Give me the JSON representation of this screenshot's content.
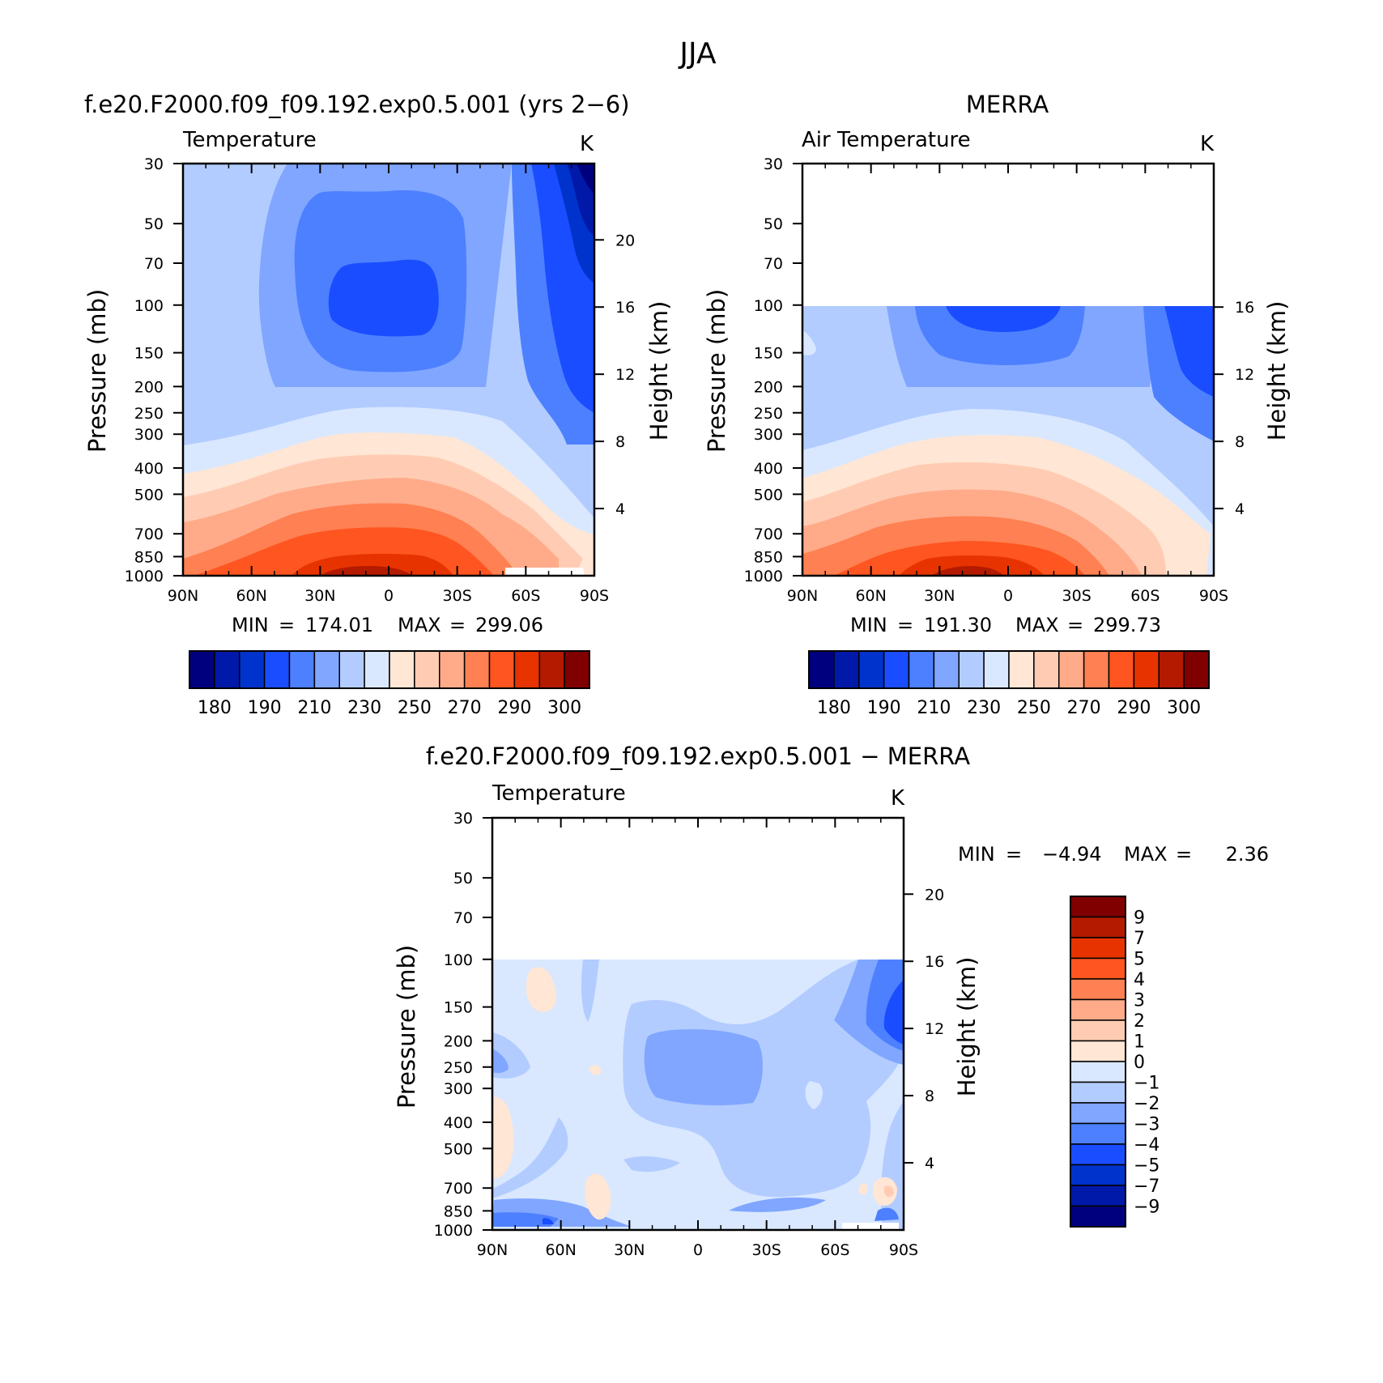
{
  "figure_title": "JJA",
  "chart_data": [
    {
      "id": "model",
      "type": "contour",
      "title": "f.e20.F2000.f09_f09.192.exp0.5.001 (yrs 2−6)",
      "left_label": "Temperature",
      "units_label": "K",
      "xlabel": "",
      "ylabel": "Pressure (mb)",
      "ylabel_right": "Height (km)",
      "x_ticks": [
        "90N",
        "60N",
        "30N",
        "0",
        "30S",
        "60S",
        "90S"
      ],
      "y_ticks": [
        30,
        50,
        70,
        100,
        150,
        200,
        250,
        300,
        400,
        500,
        700,
        850,
        1000
      ],
      "y_scale": "log",
      "ylim": [
        1000,
        30
      ],
      "height_ticks": [
        4,
        8,
        12,
        16,
        20
      ],
      "data_ceiling_mb": 30,
      "min_label": "MIN",
      "min_value": "174.01",
      "max_label": "MAX",
      "max_value": "299.06",
      "colorbar": {
        "orientation": "horizontal",
        "colors": [
          "#00007f",
          "#0019a8",
          "#0033cc",
          "#1a4dff",
          "#4d80ff",
          "#80a6ff",
          "#b3ccff",
          "#d9e8ff",
          "#ffe6d5",
          "#ffccb3",
          "#ffab8a",
          "#ff8052",
          "#ff5520",
          "#e63300",
          "#b31a00",
          "#800000"
        ],
        "tick_labels": [
          "180",
          "190",
          "210",
          "230",
          "250",
          "270",
          "290",
          "300"
        ]
      }
    },
    {
      "id": "obs",
      "type": "contour",
      "title": "MERRA",
      "left_label": "Air Temperature",
      "units_label": "K",
      "xlabel": "",
      "ylabel": "Pressure (mb)",
      "ylabel_right": "Height (km)",
      "x_ticks": [
        "90N",
        "60N",
        "30N",
        "0",
        "30S",
        "60S",
        "90S"
      ],
      "y_ticks": [
        30,
        50,
        70,
        100,
        150,
        200,
        250,
        300,
        400,
        500,
        700,
        850,
        1000
      ],
      "y_scale": "log",
      "ylim": [
        1000,
        30
      ],
      "height_ticks": [
        4,
        8,
        12,
        16
      ],
      "data_ceiling_mb": 100,
      "min_label": "MIN",
      "min_value": "191.30",
      "max_label": "MAX",
      "max_value": "299.73",
      "colorbar": {
        "orientation": "horizontal",
        "colors": [
          "#00007f",
          "#0019a8",
          "#0033cc",
          "#1a4dff",
          "#4d80ff",
          "#80a6ff",
          "#b3ccff",
          "#d9e8ff",
          "#ffe6d5",
          "#ffccb3",
          "#ffab8a",
          "#ff8052",
          "#ff5520",
          "#e63300",
          "#b31a00",
          "#800000"
        ],
        "tick_labels": [
          "180",
          "190",
          "210",
          "230",
          "250",
          "270",
          "290",
          "300"
        ]
      }
    },
    {
      "id": "diff",
      "type": "contour",
      "title": "f.e20.F2000.f09_f09.192.exp0.5.001 − MERRA",
      "left_label": "Temperature",
      "units_label": "K",
      "xlabel": "",
      "ylabel": "Pressure (mb)",
      "ylabel_right": "Height (km)",
      "x_ticks": [
        "90N",
        "60N",
        "30N",
        "0",
        "30S",
        "60S",
        "90S"
      ],
      "y_ticks": [
        30,
        50,
        70,
        100,
        150,
        200,
        250,
        300,
        400,
        500,
        700,
        850,
        1000
      ],
      "y_scale": "log",
      "ylim": [
        1000,
        30
      ],
      "height_ticks": [
        4,
        8,
        12,
        16,
        20
      ],
      "data_ceiling_mb": 100,
      "min_label": "MIN",
      "min_value": "−4.94",
      "max_label": "MAX",
      "max_value": "2.36",
      "colorbar": {
        "orientation": "vertical",
        "colors": [
          "#800000",
          "#b31a00",
          "#e63300",
          "#ff5520",
          "#ff8052",
          "#ffab8a",
          "#ffccb3",
          "#ffe6d5",
          "#d9e8ff",
          "#b3ccff",
          "#80a6ff",
          "#4d80ff",
          "#1a4dff",
          "#0033cc",
          "#0019a8",
          "#00007f"
        ],
        "tick_labels": [
          "9",
          "7",
          "5",
          "4",
          "3",
          "2",
          "1",
          "0",
          "−1",
          "−2",
          "−3",
          "−4",
          "−5",
          "−7",
          "−9"
        ]
      }
    }
  ]
}
